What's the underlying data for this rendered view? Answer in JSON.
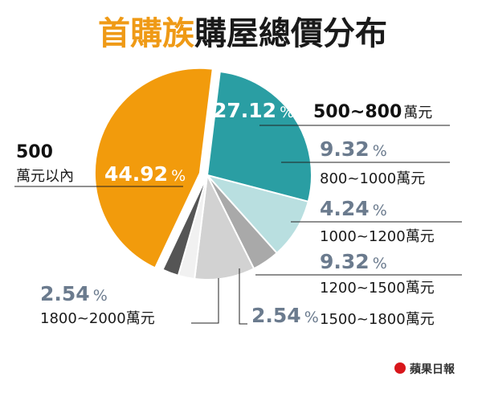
{
  "chart_data": {
    "type": "pie",
    "title_highlight": "首購族",
    "title_rest": "購屋總價分布",
    "unit": "%",
    "slices": [
      {
        "label_main": "500~800",
        "label_unit": "萬元",
        "value": 27.12,
        "color": "#2a9ea3"
      },
      {
        "label": "800~1000萬元",
        "value": 9.32,
        "color": "#b9dfe0"
      },
      {
        "label": "1000~1200萬元",
        "value": 4.24,
        "color": "#a9a9a9"
      },
      {
        "label": "1200~1500萬元",
        "value": 9.32,
        "color": "#d2d2d2"
      },
      {
        "label": "1500~1800萬元",
        "value": 2.54,
        "color": "#f1f1f1"
      },
      {
        "label": "1800~2000萬元",
        "value": 2.54,
        "color": "#555555"
      },
      {
        "label_main": "500",
        "label_unit": "萬元以內",
        "value": 44.92,
        "color": "#f29b0c"
      }
    ],
    "colors": {
      "title_highlight": "#ef9a16",
      "title_rest": "#1a1a1a",
      "pct_text": "#6b7b8e",
      "inner_pct_text": "#ffffff"
    }
  },
  "branding": {
    "logo_text": "蘋果日報",
    "logo_color": "#d8161b",
    "icon": "apple-icon"
  }
}
